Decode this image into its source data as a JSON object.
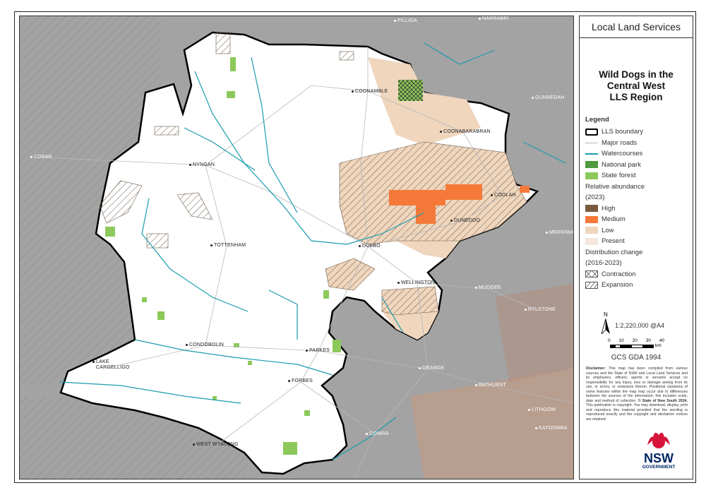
{
  "header": {
    "organisation": "Local Land Services"
  },
  "title": {
    "line1": "Wild Dogs in the",
    "line2": "Central West",
    "line3": "LLS Region"
  },
  "legend": {
    "heading": "Legend",
    "items": [
      {
        "label": "LLS boundary",
        "symbol": "boundary",
        "color": "#000000"
      },
      {
        "label": "Major roads",
        "symbol": "line",
        "color": "#b5b5b5"
      },
      {
        "label": "Watercourses",
        "symbol": "line",
        "color": "#1a9bb0"
      },
      {
        "label": "National park",
        "symbol": "fill",
        "color": "#4f9a3e"
      },
      {
        "label": "State forest",
        "symbol": "fill",
        "color": "#8cc95a"
      }
    ],
    "abundance_heading": "Relative abundance",
    "abundance_year": "(2023)",
    "abundance": [
      {
        "label": "High",
        "color": "#7a5a3e"
      },
      {
        "label": "Medium",
        "color": "#f57a3a"
      },
      {
        "label": "Low",
        "color": "#efd6bd"
      },
      {
        "label": "Present",
        "color": "#f6e6de"
      }
    ],
    "change_heading": "Distribution change",
    "change_years": "(2016-2023)",
    "change": [
      {
        "label": "Contraction",
        "pattern": "crosshatch"
      },
      {
        "label": "Expansion",
        "pattern": "diagonal"
      }
    ]
  },
  "north": "N",
  "scale": {
    "ratio": "1:2,220,000 @A4",
    "ticks": [
      "0",
      "10",
      "20",
      "30",
      "40"
    ],
    "unit": "km"
  },
  "projection": "GCS GDA 1994",
  "disclaimer": {
    "label": "Disclaimer:",
    "text": "This map has been compiled from various sources and the State of NSW and Local Land Services and its employees, officers, agents or servants accept no responsibility for any injury, loss or damage arising from its use, or errors, or omissions therein. Positional variations of some features within the map may occur due to differences between the sources of the information; this includes scale, date and method of collection.",
    "copyright": "© State of New South 2024.",
    "text2": "This publication is copyright. You may download, display, print and reproduce this material provided that the wording is reproduced exactly and the copyright and disclaimer notices are retained."
  },
  "logo": {
    "line1": "NSW",
    "line2": "GOVERNMENT"
  },
  "towns": {
    "pilliga": "PILLIGA",
    "narrabri": "NARRABRI",
    "coonamble": "COONAMBLE",
    "gunnedah": "GUNNEDAH",
    "coonabarabran": "COONABARABRAN",
    "cobar": "COBAR",
    "nyngan": "NYNGAN",
    "coolah": "COOLAH",
    "merriwa": "MERRIWA",
    "dunedoo": "DUNEDOO",
    "tottenham": "TOTTENHAM",
    "dubbo": "DUBBO",
    "mudgee": "MUDGEE",
    "wellington": "WELLINGTON",
    "rylstone": "RYLSTONE",
    "condobolin": "CONDOBOLIN",
    "parkes": "PARKES",
    "lake_cargelligo_1": "LAKE",
    "lake_cargelligo_2": "CARGELLIGO",
    "orange": "ORANGE",
    "forbes": "FORBES",
    "bathurst": "BATHURST",
    "lithgow": "LITHGOW",
    "katoomba": "KATOOMBA",
    "cowra": "COWRA",
    "west_wyalong": "WEST WYALONG"
  }
}
